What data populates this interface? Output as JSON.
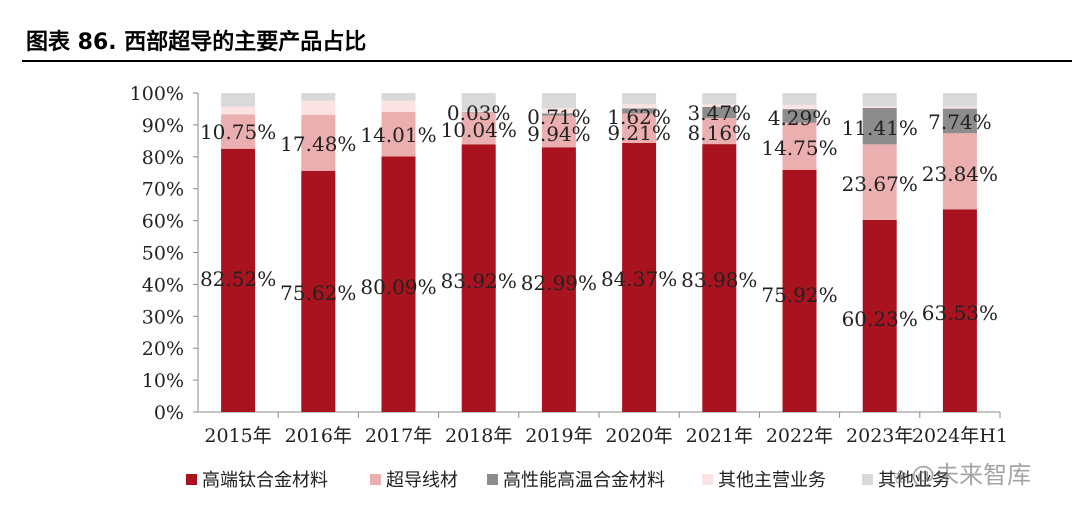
{
  "title": "图表 86. 西部超导的主要产品占比",
  "watermark": "@未来智库",
  "chart_data": {
    "type": "bar",
    "stacked": true,
    "percent": true,
    "title": "图表 86. 西部超导的主要产品占比",
    "categories": [
      "2015年",
      "2016年",
      "2017年",
      "2018年",
      "2019年",
      "2020年",
      "2021年",
      "2022年",
      "2023年",
      "2024年H1"
    ],
    "ylim": [
      0,
      100
    ],
    "yticks": [
      "0%",
      "10%",
      "20%",
      "30%",
      "40%",
      "50%",
      "60%",
      "70%",
      "80%",
      "90%",
      "100%"
    ],
    "xlabel": "",
    "ylabel": "",
    "legend_position": "bottom",
    "series": [
      {
        "name": "高端钛合金材料",
        "color": "#A8131F",
        "values": [
          82.52,
          75.62,
          80.09,
          83.92,
          82.99,
          84.37,
          83.98,
          75.92,
          60.23,
          63.53
        ],
        "labels": [
          "82.52%",
          "75.62%",
          "80.09%",
          "83.92%",
          "82.99%",
          "84.37%",
          "83.98%",
          "75.92%",
          "60.23%",
          "63.53%"
        ]
      },
      {
        "name": "超导线材",
        "color": "#EBAFAF",
        "values": [
          10.75,
          17.48,
          14.01,
          10.04,
          9.94,
          9.21,
          8.16,
          14.75,
          23.67,
          23.84
        ],
        "labels": [
          "10.75%",
          "17.48%",
          "14.01%",
          "10.04%",
          "9.94%",
          "9.21%",
          "8.16%",
          "14.75%",
          "23.67%",
          "23.84%"
        ]
      },
      {
        "name": "高性能高温合金材料",
        "color": "#8C8C8C",
        "values": [
          0,
          0,
          0,
          0.03,
          0.71,
          1.62,
          3.47,
          4.29,
          11.41,
          7.74
        ],
        "labels": [
          "",
          "",
          "",
          "0.03%",
          "0.71%",
          "1.62%",
          "3.47%",
          "4.29%",
          "11.41%",
          "7.74%"
        ]
      },
      {
        "name": "其他主营业务",
        "color": "#FBE3E3",
        "values": [
          2.5,
          4.5,
          3.5,
          0.3,
          1.6,
          1.3,
          0.8,
          1.3,
          0.5,
          0.6
        ],
        "labels": [
          "",
          "",
          "",
          "",
          "",
          "",
          "",
          "",
          "",
          ""
        ]
      },
      {
        "name": "其他业务",
        "color": "#D9D9D9",
        "values": [
          4.23,
          2.4,
          2.4,
          5.71,
          4.76,
          3.5,
          3.59,
          3.74,
          4.19,
          4.29
        ],
        "labels": [
          "",
          "",
          "",
          "",
          "",
          "",
          "",
          "",
          "",
          ""
        ]
      }
    ]
  }
}
